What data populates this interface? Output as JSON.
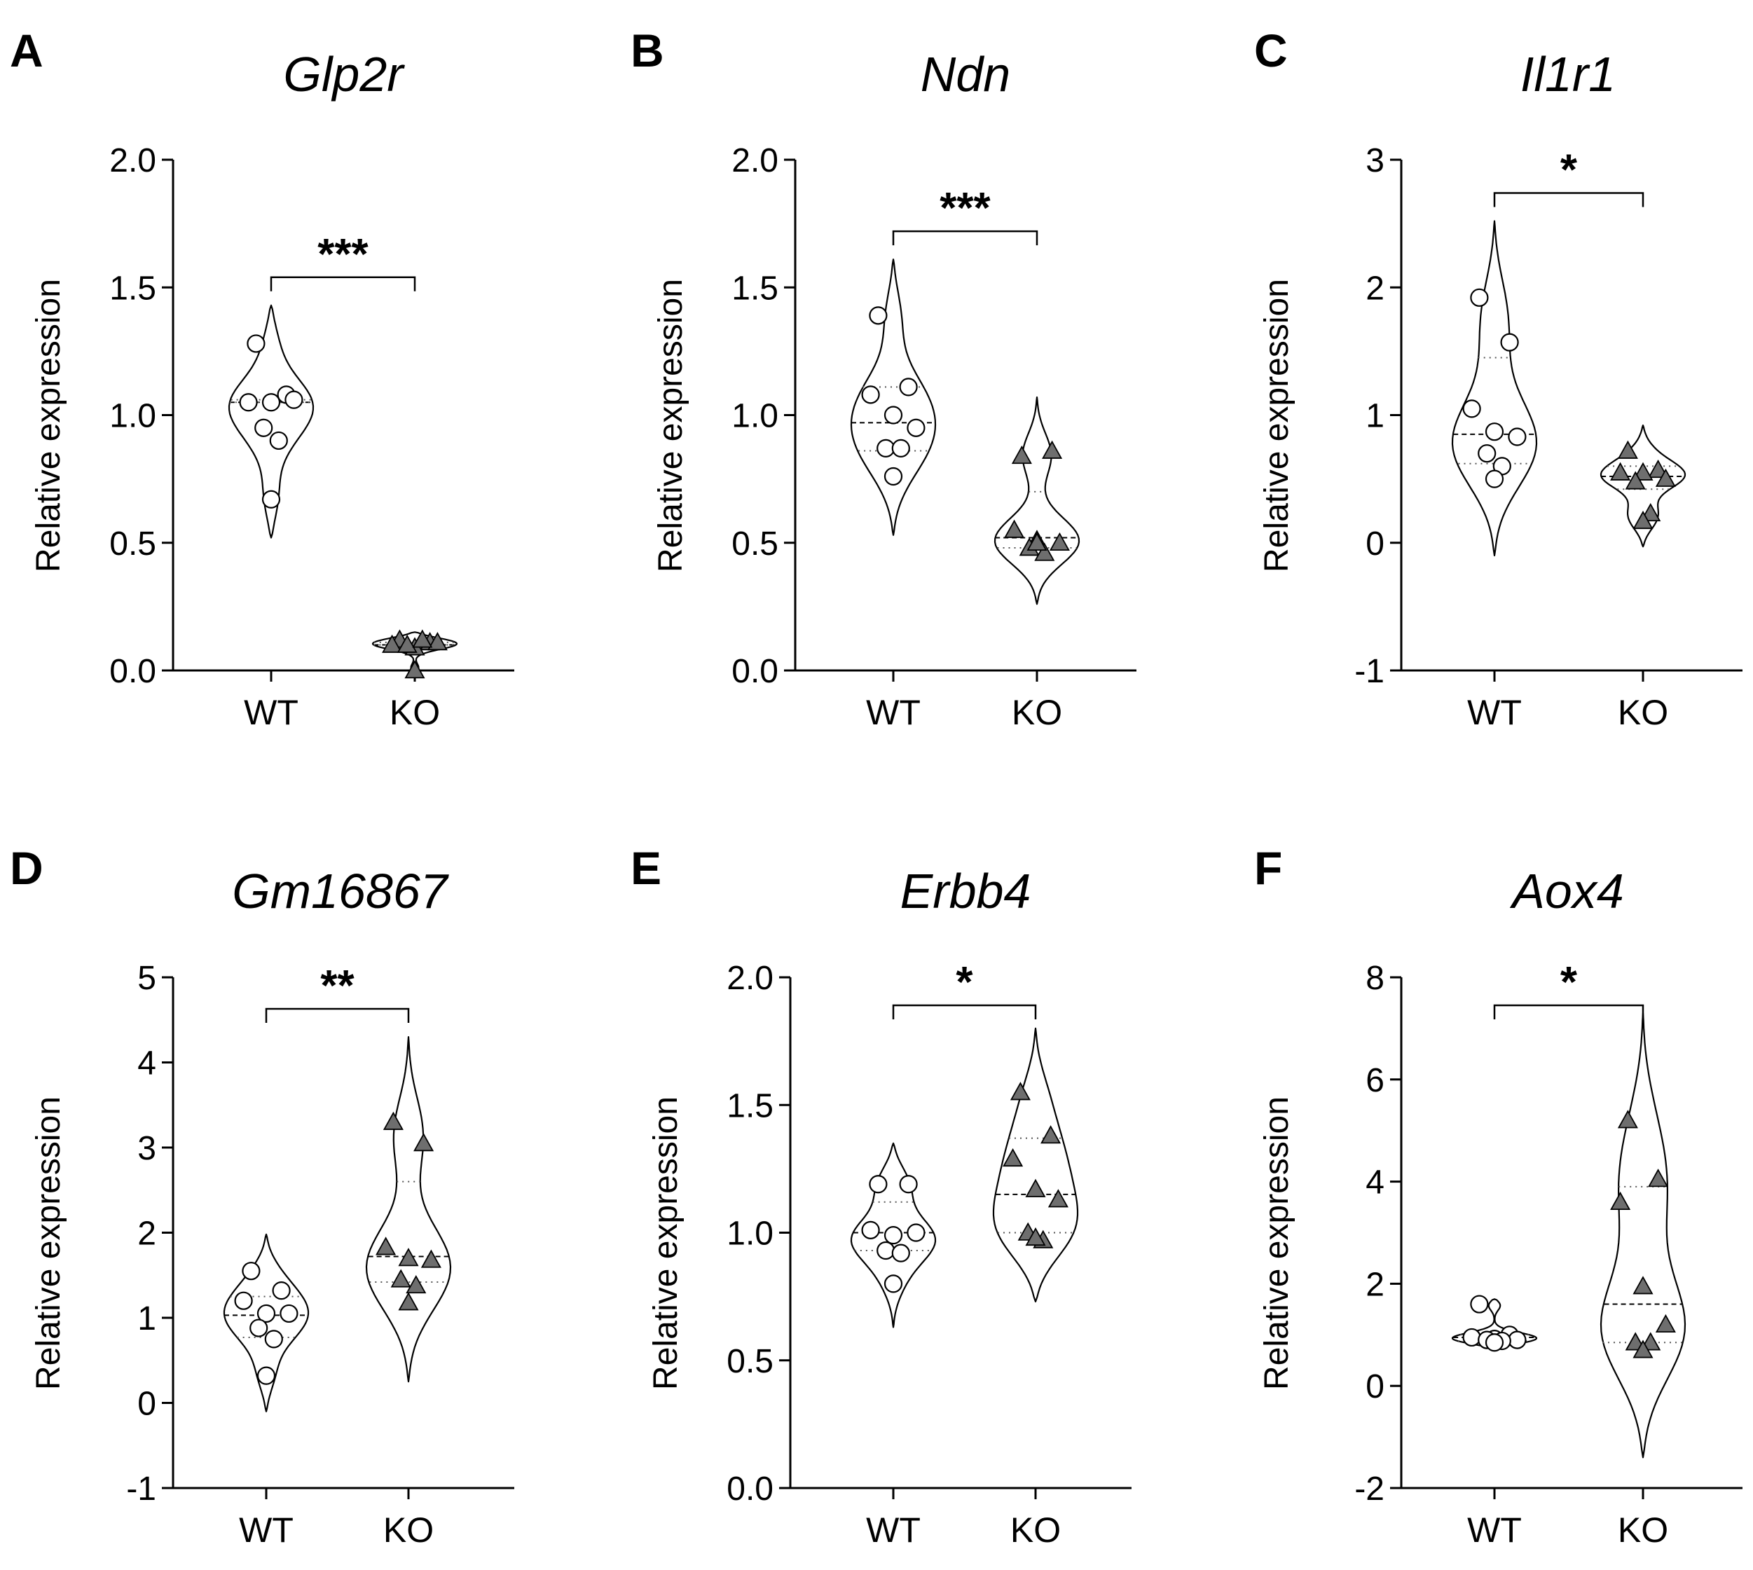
{
  "figure": {
    "panels": [
      "A",
      "B",
      "C",
      "D",
      "E",
      "F"
    ]
  },
  "chart_data": [
    {
      "type": "violin",
      "panel": "A",
      "title": "Glp2r",
      "ylabel": "Relative expression",
      "ylim": [
        0,
        2
      ],
      "yticks": [
        0,
        0.5,
        1,
        1.5,
        2
      ],
      "ytick_labels": [
        "0.0",
        "0.5",
        "1.0",
        "1.5",
        "2.0"
      ],
      "categories": [
        "WT",
        "KO"
      ],
      "significance": "***",
      "series": [
        {
          "name": "WT",
          "marker": "circle",
          "points": [
            1.28,
            1.08,
            1.05,
            1.05,
            1.06,
            0.95,
            0.9,
            0.67
          ],
          "median": 1.05,
          "q1": 1.05,
          "q3": 1.06,
          "min": 0.52,
          "max": 1.43
        },
        {
          "name": "KO",
          "marker": "triangle",
          "points": [
            0.12,
            0.11,
            0.1,
            0.09,
            0.11,
            0.1,
            0.12,
            0.0
          ],
          "median": 0.1,
          "q1": 0.1,
          "q3": 0.11,
          "min": 0.0,
          "max": 0.15
        }
      ]
    },
    {
      "type": "violin",
      "panel": "B",
      "title": "Ndn",
      "ylabel": "Relative expression",
      "ylim": [
        0,
        2
      ],
      "yticks": [
        0,
        0.5,
        1,
        1.5,
        2
      ],
      "ytick_labels": [
        "0.0",
        "0.5",
        "1.0",
        "1.5",
        "2.0"
      ],
      "categories": [
        "WT",
        "KO"
      ],
      "significance": "***",
      "series": [
        {
          "name": "WT",
          "marker": "circle",
          "points": [
            1.39,
            1.11,
            1.08,
            1.0,
            0.95,
            0.87,
            0.87,
            0.76
          ],
          "median": 0.97,
          "q1": 0.86,
          "q3": 1.11,
          "min": 0.53,
          "max": 1.61
        },
        {
          "name": "KO",
          "marker": "triangle",
          "points": [
            0.84,
            0.86,
            0.55,
            0.51,
            0.5,
            0.48,
            0.46,
            0.5
          ],
          "median": 0.52,
          "q1": 0.48,
          "q3": 0.7,
          "min": 0.26,
          "max": 1.07
        }
      ]
    },
    {
      "type": "violin",
      "panel": "C",
      "title": "Il1r1",
      "ylabel": "Relative expression",
      "ylim": [
        -1,
        3
      ],
      "yticks": [
        -1,
        0,
        1,
        2,
        3
      ],
      "ytick_labels": [
        "-1",
        "0",
        "1",
        "2",
        "3"
      ],
      "categories": [
        "WT",
        "KO"
      ],
      "significance": "*",
      "series": [
        {
          "name": "WT",
          "marker": "circle",
          "points": [
            1.92,
            1.57,
            1.05,
            0.87,
            0.83,
            0.7,
            0.6,
            0.5
          ],
          "median": 0.85,
          "q1": 0.62,
          "q3": 1.45,
          "min": -0.1,
          "max": 2.52
        },
        {
          "name": "KO",
          "marker": "triangle",
          "points": [
            0.72,
            0.57,
            0.55,
            0.55,
            0.5,
            0.48,
            0.23,
            0.17
          ],
          "median": 0.52,
          "q1": 0.42,
          "q3": 0.6,
          "min": -0.03,
          "max": 0.92
        }
      ]
    },
    {
      "type": "violin",
      "panel": "D",
      "title": "Gm16867",
      "ylabel": "Relative expression",
      "ylim": [
        -1,
        5
      ],
      "yticks": [
        -1,
        0,
        1,
        2,
        3,
        4,
        5
      ],
      "ytick_labels": [
        "-1",
        "0",
        "1",
        "2",
        "3",
        "4",
        "5"
      ],
      "categories": [
        "WT",
        "KO"
      ],
      "significance": "**",
      "series": [
        {
          "name": "WT",
          "marker": "circle",
          "points": [
            1.55,
            1.32,
            1.2,
            1.05,
            1.05,
            0.88,
            0.75,
            0.32
          ],
          "median": 1.03,
          "q1": 0.77,
          "q3": 1.25,
          "min": -0.1,
          "max": 1.98
        },
        {
          "name": "KO",
          "marker": "triangle",
          "points": [
            3.3,
            3.05,
            1.83,
            1.7,
            1.68,
            1.45,
            1.38,
            1.18
          ],
          "median": 1.72,
          "q1": 1.42,
          "q3": 2.6,
          "min": 0.25,
          "max": 4.3
        }
      ]
    },
    {
      "type": "violin",
      "panel": "E",
      "title": "Erbb4",
      "ylabel": "Relative expression",
      "ylim": [
        0,
        2
      ],
      "yticks": [
        0,
        0.5,
        1,
        1.5,
        2
      ],
      "ytick_labels": [
        "0.0",
        "0.5",
        "1.0",
        "1.5",
        "2.0"
      ],
      "categories": [
        "WT",
        "KO"
      ],
      "significance": "*",
      "series": [
        {
          "name": "WT",
          "marker": "circle",
          "points": [
            1.19,
            1.19,
            1.01,
            0.99,
            1.0,
            0.93,
            0.92,
            0.8
          ],
          "median": 1.0,
          "q1": 0.93,
          "q3": 1.12,
          "min": 0.63,
          "max": 1.35
        },
        {
          "name": "KO",
          "marker": "triangle",
          "points": [
            1.55,
            1.38,
            1.29,
            1.17,
            1.13,
            1.0,
            0.97,
            0.98
          ],
          "median": 1.15,
          "q1": 1.0,
          "q3": 1.37,
          "min": 0.73,
          "max": 1.8
        }
      ]
    },
    {
      "type": "violin",
      "panel": "F",
      "title": "Aox4",
      "ylabel": "Relative expression",
      "ylim": [
        -2,
        8
      ],
      "yticks": [
        -2,
        0,
        2,
        4,
        6,
        8
      ],
      "ytick_labels": [
        "-2",
        "0",
        "2",
        "4",
        "6",
        "8"
      ],
      "categories": [
        "WT",
        "KO"
      ],
      "significance": "*",
      "series": [
        {
          "name": "WT",
          "marker": "circle",
          "points": [
            1.6,
            1.0,
            0.95,
            0.92,
            0.9,
            0.9,
            0.88,
            0.85
          ],
          "median": 0.95,
          "q1": 0.88,
          "q3": 1.0,
          "min": 0.75,
          "max": 1.7
        },
        {
          "name": "KO",
          "marker": "triangle",
          "points": [
            5.2,
            4.05,
            3.6,
            1.95,
            1.2,
            0.85,
            0.85,
            0.7
          ],
          "median": 1.6,
          "q1": 0.85,
          "q3": 3.9,
          "min": -1.4,
          "max": 7.3
        }
      ]
    }
  ]
}
